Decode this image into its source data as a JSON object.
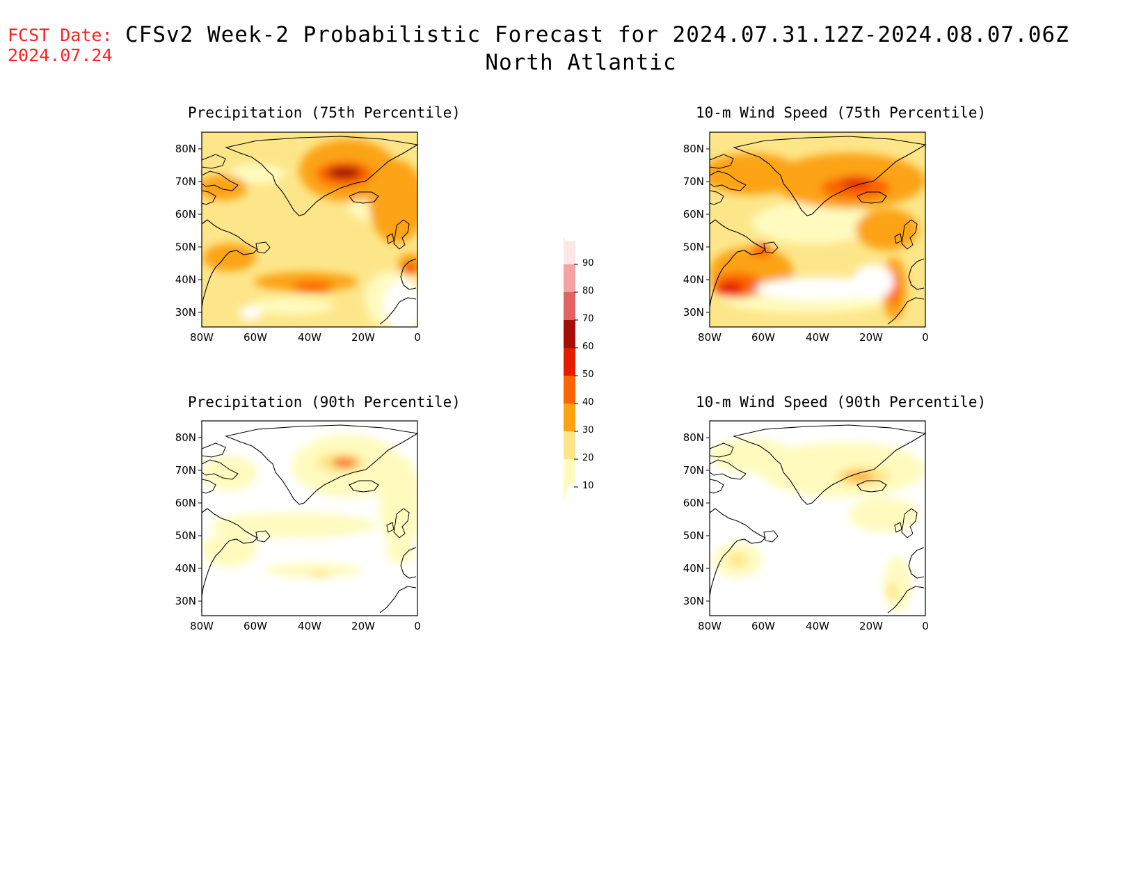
{
  "header": {
    "fcst_label": "FCST Date:",
    "fcst_date": "2024.07.24",
    "title": "CFSv2 Week-2 Probabilistic Forecast for 2024.07.31.12Z-2024.08.07.06Z",
    "subtitle": "North Atlantic"
  },
  "axes": {
    "lat_labels": [
      "80N",
      "70N",
      "60N",
      "50N",
      "40N",
      "30N"
    ],
    "lon_labels": [
      "80W",
      "60W",
      "40W",
      "20W",
      "0"
    ]
  },
  "panels": [
    {
      "id": "precip75",
      "title": "Precipitation (75th Percentile)"
    },
    {
      "id": "wind75",
      "title": "10-m Wind Speed (75th Percentile)"
    },
    {
      "id": "precip90",
      "title": "Precipitation (90th Percentile)"
    },
    {
      "id": "wind90",
      "title": "10-m Wind Speed (90th Percentile)"
    }
  ],
  "colorbar": {
    "levels": [
      "10",
      "20",
      "30",
      "40",
      "50",
      "60",
      "70",
      "80",
      "90"
    ],
    "colors": [
      "#fffbbf",
      "#fde68a",
      "#fca312",
      "#fc6402",
      "#e51b00",
      "#a50f05",
      "#e16464",
      "#f4a3a3",
      "#fde6e6"
    ]
  }
}
